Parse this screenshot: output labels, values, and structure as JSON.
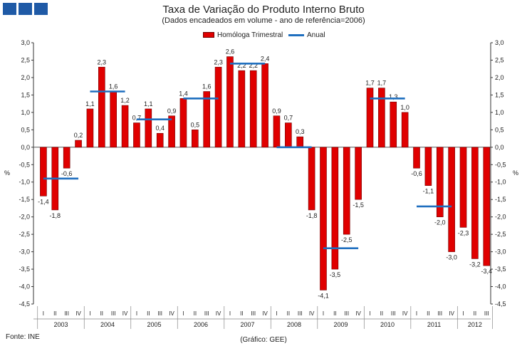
{
  "header": {
    "title": "Taxa de Variação do Produto Interno Bruto",
    "subtitle": "(Dados encadeados em volume - ano de referência=2006)"
  },
  "legend": {
    "bar_label": "Homóloga Trimestral",
    "line_label": "Anual"
  },
  "footer": {
    "source": "Fonte: INE",
    "credit": "(Gráfico: GEE)"
  },
  "colors": {
    "bar_fill": "#e00000",
    "bar_edge": "#700000",
    "annual": "#1f6fbf",
    "logo": "#1f5aa6"
  },
  "chart_data": {
    "type": "bar",
    "title": "Taxa de Variação do Produto Interno Bruto",
    "subtitle": "(Dados encadeados em volume - ano de referência=2006)",
    "ylabel": "%",
    "ylim": [
      -4.5,
      3.0
    ],
    "ytick_step": 0.5,
    "ytick_labels": [
      "3,0",
      "2,5",
      "2,0",
      "1,5",
      "1,0",
      "0,5",
      "0,0",
      "-0,5",
      "-1,0",
      "-1,5",
      "-2,0",
      "-2,5",
      "-3,0",
      "-3,5",
      "-4,0",
      "-4,5"
    ],
    "quarter_labels": [
      "I",
      "II",
      "III",
      "IV"
    ],
    "years": [
      "2003",
      "2004",
      "2005",
      "2006",
      "2007",
      "2008",
      "2009",
      "2010",
      "2011",
      "2012"
    ],
    "series": [
      {
        "name": "Homóloga Trimestral",
        "type": "bar",
        "values": [
          -1.4,
          -1.8,
          -0.6,
          0.2,
          1.1,
          2.3,
          1.6,
          1.2,
          0.7,
          1.1,
          0.4,
          0.9,
          1.4,
          0.5,
          1.6,
          2.3,
          2.6,
          2.2,
          2.2,
          2.4,
          0.9,
          0.7,
          0.3,
          -1.8,
          -4.1,
          -3.5,
          -2.5,
          -1.5,
          1.7,
          1.7,
          1.3,
          1.0,
          -0.6,
          -1.1,
          -2.0,
          -3.0,
          -2.3,
          -3.2,
          -3.4
        ]
      },
      {
        "name": "Anual",
        "type": "line",
        "values": [
          -0.9,
          1.6,
          0.8,
          1.4,
          2.4,
          0.0,
          -2.9,
          1.4,
          -1.7
        ]
      }
    ],
    "data_labels": [
      {
        "index": 0,
        "text": "-1,4"
      },
      {
        "index": 1,
        "text": "-1,8"
      },
      {
        "index": 2,
        "text": "-0,6"
      },
      {
        "index": 3,
        "text": "0,2"
      },
      {
        "index": 4,
        "text": "1,1"
      },
      {
        "index": 5,
        "text": "2,3"
      },
      {
        "index": 6,
        "text": "1,6"
      },
      {
        "index": 7,
        "text": "1,2"
      },
      {
        "index": 8,
        "text": "0,7"
      },
      {
        "index": 9,
        "text": "1,1"
      },
      {
        "index": 10,
        "text": "0,4"
      },
      {
        "index": 11,
        "text": "0,9"
      },
      {
        "index": 12,
        "text": "1,4"
      },
      {
        "index": 13,
        "text": "0,5"
      },
      {
        "index": 14,
        "text": "1,6"
      },
      {
        "index": 15,
        "text": "2,3"
      },
      {
        "index": 16,
        "text": "2,6"
      },
      {
        "index": 17,
        "text": "2,2"
      },
      {
        "index": 18,
        "text": "2,2"
      },
      {
        "index": 19,
        "text": "2,4"
      },
      {
        "index": 20,
        "text": "0,9"
      },
      {
        "index": 21,
        "text": "0,7"
      },
      {
        "index": 22,
        "text": "0,3"
      },
      {
        "index": 23,
        "text": "-1,8"
      },
      {
        "index": 24,
        "text": "-4,1"
      },
      {
        "index": 25,
        "text": "-3,5"
      },
      {
        "index": 26,
        "text": "-2,5"
      },
      {
        "index": 27,
        "text": "-1,5"
      },
      {
        "index": 28,
        "text": "1,7"
      },
      {
        "index": 29,
        "text": "1,7"
      },
      {
        "index": 30,
        "text": "1,3"
      },
      {
        "index": 31,
        "text": "1,0"
      },
      {
        "index": 32,
        "text": "-0,6"
      },
      {
        "index": 33,
        "text": "-1,1"
      },
      {
        "index": 34,
        "text": "-2,0"
      },
      {
        "index": 35,
        "text": "-3,0"
      },
      {
        "index": 36,
        "text": "-2,3"
      },
      {
        "index": 37,
        "text": "-3,2"
      },
      {
        "index": 38,
        "text": "-3,4"
      }
    ]
  }
}
